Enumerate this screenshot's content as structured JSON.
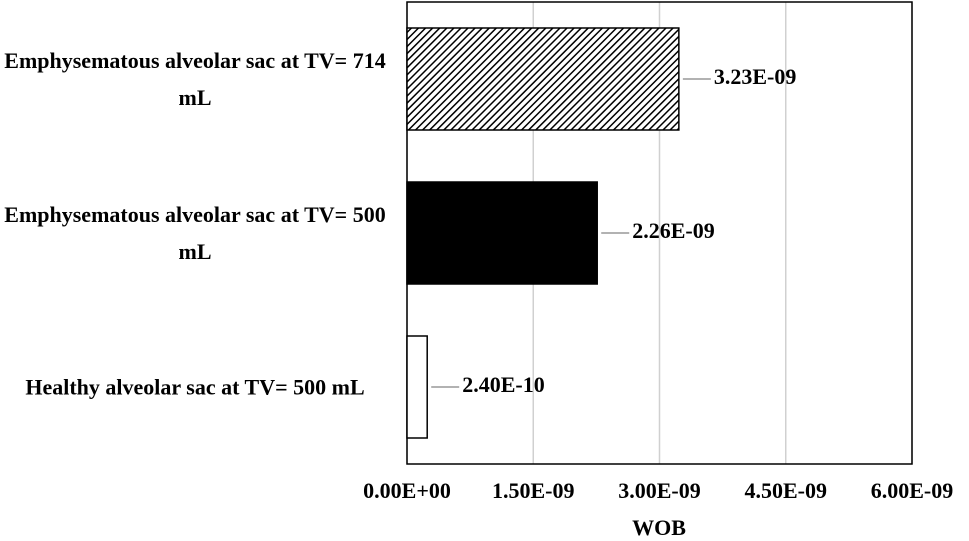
{
  "chart_data": {
    "type": "hbar",
    "categories": [
      "Emphysematous alveolar sac at TV= 714 mL",
      "Emphysematous alveolar sac at TV= 500 mL",
      "Healthy alveolar sac at TV= 500 mL"
    ],
    "values": [
      3.23e-09,
      2.26e-09,
      2.4e-10
    ],
    "value_labels": [
      "3.23E-09",
      "2.26E-09",
      "2.40E-10"
    ],
    "colors": [
      "#000000",
      "#000000",
      "#ffffff"
    ],
    "hatch": [
      true,
      false,
      false
    ],
    "xlabel": "WOB",
    "xlim": [
      0,
      6e-09
    ],
    "xticks": [
      {
        "value": 0,
        "label": "0.00E+00"
      },
      {
        "value": 1.5e-09,
        "label": "1.50E-09"
      },
      {
        "value": 3e-09,
        "label": "3.00E-09"
      },
      {
        "value": 4.5e-09,
        "label": "4.50E-09"
      },
      {
        "value": 6e-09,
        "label": "6.00E-09"
      }
    ],
    "grid": true
  }
}
